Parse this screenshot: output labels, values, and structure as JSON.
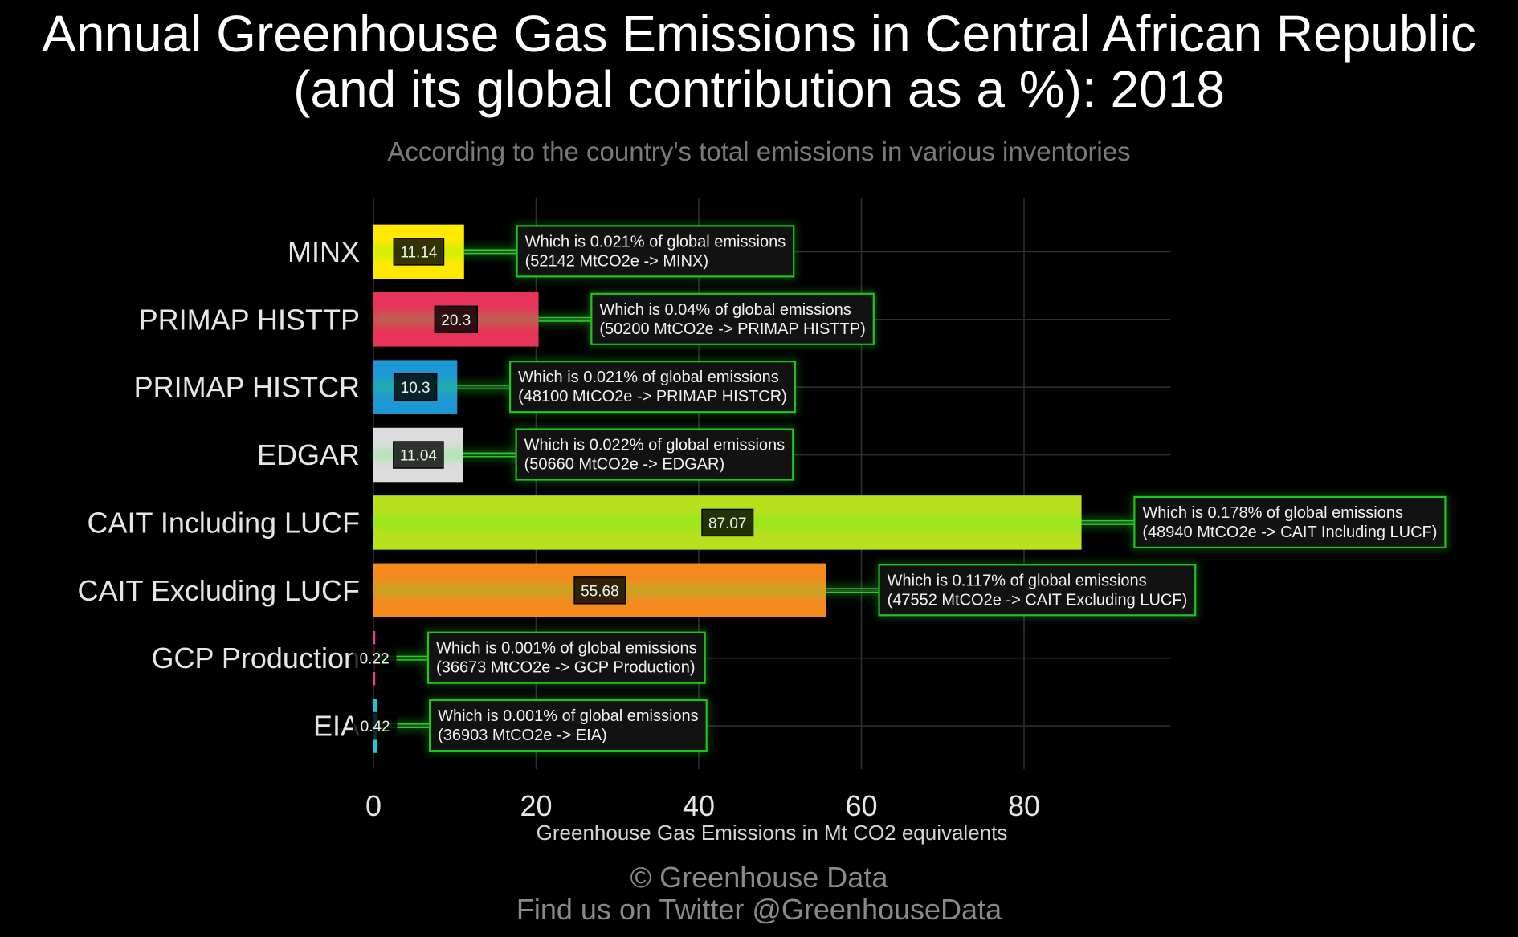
{
  "chart_data": {
    "type": "bar",
    "orientation": "horizontal",
    "title": [
      "Annual Greenhouse Gas Emissions in Central African Republic",
      "(and its global contribution as a %): 2018"
    ],
    "subtitle": "According to the country's total emissions in various inventories",
    "categories": [
      "MINX",
      "PRIMAP HISTTP",
      "PRIMAP HISTCR",
      "EDGAR",
      "CAIT Including LUCF",
      "CAIT Excluding LUCF",
      "GCP Production",
      "EIA"
    ],
    "values": [
      11.14,
      20.3,
      10.3,
      11.04,
      87.07,
      55.68,
      0.22,
      0.42
    ],
    "colors": [
      "#FFE900",
      "#E8345A",
      "#1E97D5",
      "#DCDCDC",
      "#B8E01D",
      "#F58A1F",
      "#E8409A",
      "#1FC8D8"
    ],
    "annotations": [
      {
        "line1": "Which is 0.021% of global emissions",
        "line2": "(52142 MtCO2e -> MINX)"
      },
      {
        "line1": "Which is 0.04% of global emissions",
        "line2": "(50200 MtCO2e -> PRIMAP HISTTP)"
      },
      {
        "line1": "Which is 0.021% of global emissions",
        "line2": "(48100 MtCO2e -> PRIMAP HISTCR)"
      },
      {
        "line1": "Which is 0.022% of global emissions",
        "line2": "(50660 MtCO2e -> EDGAR)"
      },
      {
        "line1": "Which is 0.178% of global emissions",
        "line2": "(48940 MtCO2e -> CAIT Including LUCF)"
      },
      {
        "line1": "Which is 0.117% of global emissions",
        "line2": "(47552 MtCO2e -> CAIT Excluding LUCF)"
      },
      {
        "line1": "Which is 0.001% of global emissions",
        "line2": "(36673 MtCO2e -> GCP Production)"
      },
      {
        "line1": "Which is 0.001% of global emissions",
        "line2": "(36903 MtCO2e -> EIA)"
      }
    ],
    "xlabel": "Greenhouse Gas Emissions in Mt CO2 equivalents",
    "ylabel": "",
    "xticks": [
      0,
      20,
      40,
      60,
      80
    ],
    "xlim": [
      0,
      98
    ],
    "grid": true,
    "caption": [
      "© Greenhouse Data",
      "Find us on Twitter @GreenhouseData"
    ],
    "style": {
      "background": "#000000",
      "annotation_border": "#1FC41F",
      "connector": "#23D023"
    }
  }
}
